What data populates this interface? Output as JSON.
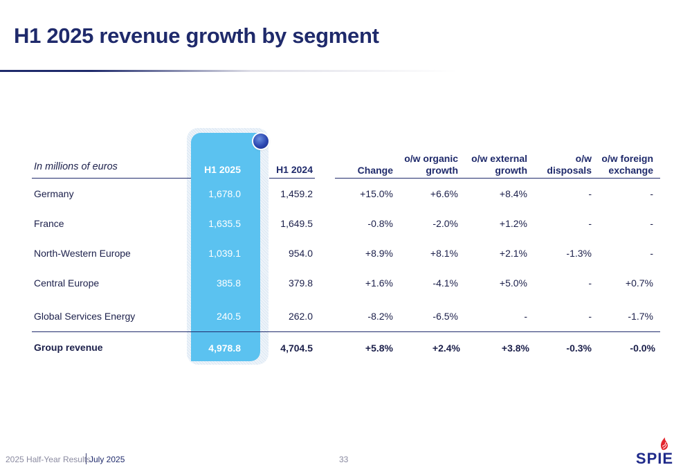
{
  "title": "H1 2025 revenue growth by segment",
  "table": {
    "units_label": "In millions of euros",
    "headers": {
      "h1_2025": "H1 2025",
      "h1_2024": "H1 2024",
      "change": "Change",
      "organic_l1": "o/w organic",
      "organic_l2": "growth",
      "external_l1": "o/w external",
      "external_l2": "growth",
      "disposals_l1": "o/w",
      "disposals_l2": "disposals",
      "fx_l1": "o/w foreign",
      "fx_l2": "exchange"
    },
    "rows": [
      {
        "segment": "Germany",
        "h1_2025": "1,678.0",
        "h1_2024": "1,459.2",
        "change": "+15.0%",
        "organic": "+6.6%",
        "external": "+8.4%",
        "disposals": "-",
        "fx": "-"
      },
      {
        "segment": "France",
        "h1_2025": "1,635.5",
        "h1_2024": "1,649.5",
        "change": "-0.8%",
        "organic": "-2.0%",
        "external": "+1.2%",
        "disposals": "-",
        "fx": "-"
      },
      {
        "segment": "North-Western Europe",
        "h1_2025": "1,039.1",
        "h1_2024": "954.0",
        "change": "+8.9%",
        "organic": "+8.1%",
        "external": "+2.1%",
        "disposals": "-1.3%",
        "fx": "-"
      },
      {
        "segment": "Central Europe",
        "h1_2025": "385.8",
        "h1_2024": "379.8",
        "change": "+1.6%",
        "organic": "-4.1%",
        "external": "+5.0%",
        "disposals": "-",
        "fx": "+0.7%"
      },
      {
        "segment": "Global Services Energy",
        "h1_2025": "240.5",
        "h1_2024": "262.0",
        "change": "-8.2%",
        "organic": "-6.5%",
        "external": "-",
        "disposals": "-",
        "fx": "-1.7%"
      }
    ],
    "total": {
      "segment": "Group revenue",
      "h1_2025": "4,978.8",
      "h1_2024": "4,704.5",
      "change": "+5.8%",
      "organic": "+2.4%",
      "external": "+3.8%",
      "disposals": "-0.3%",
      "fx": "-0.0%"
    }
  },
  "footer": {
    "left": "2025 Half-Year Results",
    "date": "July 2025",
    "page": "33"
  },
  "logo_text": "SPIE",
  "colors": {
    "title": "#1f2a6b",
    "highlight_column": "#5bc2f0",
    "logo_blue": "#1f2a8a",
    "logo_red": "#e3262e"
  }
}
